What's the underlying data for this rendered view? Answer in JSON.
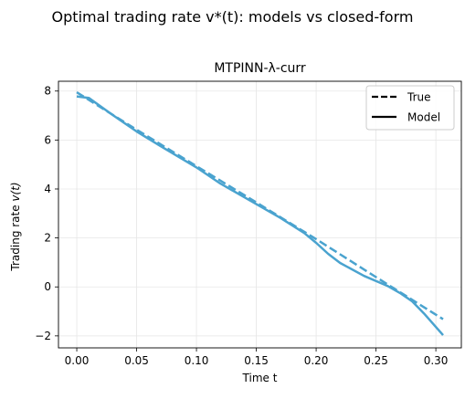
{
  "chart_data": {
    "type": "line",
    "suptitle": "Optimal trading rate v*(t): models vs closed-form",
    "title": "MTPINN-λ-curr",
    "xlabel": "Time t",
    "ylabel_prefix": "Trading rate ",
    "ylabel_math": "v(t)",
    "xlim": [
      -0.0153,
      0.3213
    ],
    "ylim": [
      -2.49,
      8.4
    ],
    "xticks": [
      0.0,
      0.05,
      0.1,
      0.15,
      0.2,
      0.25,
      0.3
    ],
    "xtick_labels": [
      "0.00",
      "0.05",
      "0.10",
      "0.15",
      "0.20",
      "0.25",
      "0.30"
    ],
    "yticks": [
      -2,
      0,
      2,
      4,
      6,
      8
    ],
    "ytick_labels": [
      "−2",
      "0",
      "2",
      "4",
      "6",
      "8"
    ],
    "grid": true,
    "legend_position": "top-right",
    "legend": [
      {
        "label": "True",
        "style": "dashed"
      },
      {
        "label": "Model",
        "style": "solid"
      }
    ],
    "color": "#4aa3cf",
    "series": [
      {
        "name": "True",
        "style": "dashed",
        "x": [
          0.0,
          0.05,
          0.1,
          0.15,
          0.2,
          0.25,
          0.306
        ],
        "y": [
          7.95,
          6.42,
          4.93,
          3.45,
          1.95,
          0.4,
          -1.32
        ]
      },
      {
        "name": "Model",
        "style": "solid",
        "x": [
          0.0,
          0.01,
          0.03,
          0.05,
          0.07,
          0.1,
          0.12,
          0.15,
          0.17,
          0.19,
          0.2,
          0.21,
          0.22,
          0.24,
          0.26,
          0.27,
          0.28,
          0.29,
          0.306
        ],
        "y": [
          7.78,
          7.72,
          7.02,
          6.35,
          5.75,
          4.88,
          4.22,
          3.38,
          2.82,
          2.2,
          1.8,
          1.35,
          0.98,
          0.45,
          0.03,
          -0.25,
          -0.58,
          -1.08,
          -1.97
        ]
      }
    ]
  }
}
